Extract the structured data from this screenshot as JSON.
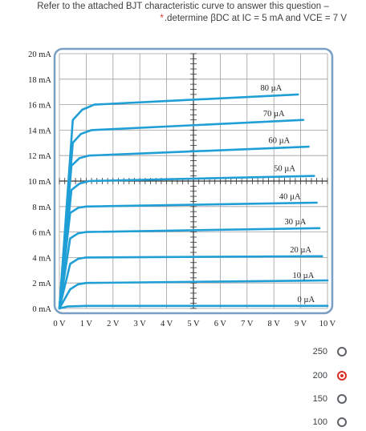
{
  "question": {
    "line1": "Refer to the attached BJT characteristic curve to answer this question –",
    "required_mark": "*",
    "line2": ".determine βDC at IC = 5 mA and VCE = 7 V"
  },
  "chart_data": {
    "type": "line",
    "title": "",
    "xlabel": "",
    "ylabel": "",
    "xlim": [
      0,
      10
    ],
    "ylim": [
      0,
      20
    ],
    "x_ticks": [
      "0 V",
      "1 V",
      "2 V",
      "3 V",
      "4 V",
      "5 V",
      "6 V",
      "7 V",
      "8 V",
      "9 V",
      "10 V"
    ],
    "y_ticks": [
      "0 mA",
      "2 mA",
      "4 mA",
      "6 mA",
      "8 mA",
      "10 mA",
      "12 mA",
      "14 mA",
      "16 mA",
      "18 mA",
      "20 mA"
    ],
    "grid": true,
    "series": [
      {
        "name": "0 µA",
        "x": [
          0,
          0.3,
          1,
          10
        ],
        "y": [
          0,
          0.15,
          0.2,
          0.2
        ]
      },
      {
        "name": "10 µA",
        "x": [
          0,
          0.4,
          0.7,
          1,
          10
        ],
        "y": [
          0,
          1.5,
          1.9,
          2.0,
          2.2
        ]
      },
      {
        "name": "20 µA",
        "x": [
          0,
          0.4,
          0.7,
          1,
          9.8
        ],
        "y": [
          0,
          3.5,
          3.9,
          4.0,
          4.1
        ]
      },
      {
        "name": "30 µA",
        "x": [
          0,
          0.4,
          0.7,
          1,
          9.7
        ],
        "y": [
          0,
          5.5,
          5.9,
          6.0,
          6.3
        ]
      },
      {
        "name": "40 µA",
        "x": [
          0,
          0.4,
          0.7,
          1,
          9.6
        ],
        "y": [
          0,
          7.5,
          7.9,
          8.0,
          8.3
        ]
      },
      {
        "name": "50 µA",
        "x": [
          0,
          0.45,
          0.75,
          1.1,
          9.5
        ],
        "y": [
          0,
          9.3,
          9.8,
          10.0,
          10.4
        ]
      },
      {
        "name": "60 µA",
        "x": [
          0,
          0.45,
          0.75,
          1.1,
          9.3
        ],
        "y": [
          0,
          11.2,
          11.8,
          12.0,
          12.7
        ]
      },
      {
        "name": "70 µA",
        "x": [
          0,
          0.5,
          0.8,
          1.2,
          9.1
        ],
        "y": [
          0,
          13.0,
          13.7,
          14.0,
          14.8
        ]
      },
      {
        "name": "80 µA",
        "x": [
          0,
          0.5,
          0.85,
          1.3,
          8.9
        ],
        "y": [
          0,
          14.8,
          15.6,
          16.0,
          16.8
        ]
      }
    ],
    "curve_label_pos": [
      {
        "name": "80 µA",
        "x": 7.9,
        "y": 17.1
      },
      {
        "name": "70 µA",
        "x": 8.0,
        "y": 15.1
      },
      {
        "name": "60 µA",
        "x": 8.2,
        "y": 13.0
      },
      {
        "name": "50 µA",
        "x": 8.4,
        "y": 10.8
      },
      {
        "name": "40 µA",
        "x": 8.6,
        "y": 8.6
      },
      {
        "name": "30 µA",
        "x": 8.8,
        "y": 6.6
      },
      {
        "name": "20 µA",
        "x": 9.0,
        "y": 4.4
      },
      {
        "name": "10 µA",
        "x": 9.1,
        "y": 2.4
      },
      {
        "name": "0 µA",
        "x": 9.2,
        "y": 0.5
      }
    ],
    "colors": {
      "curve": "#1f9fd6",
      "grid": "#9e9e9e",
      "border": "#7a9fc4"
    }
  },
  "options": [
    {
      "label": "250",
      "checked": false
    },
    {
      "label": "200",
      "checked": true
    },
    {
      "label": "150",
      "checked": false
    },
    {
      "label": "100",
      "checked": false
    }
  ]
}
